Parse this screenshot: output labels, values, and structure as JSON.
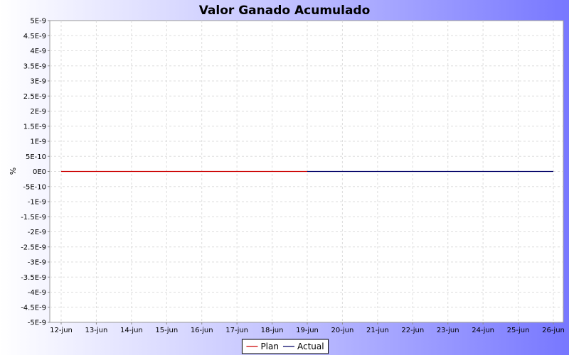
{
  "chart_data": {
    "type": "line",
    "title": "Valor Ganado Acumulado",
    "xlabel": "",
    "ylabel": "%",
    "ylim": [
      -5e-09,
      5e-09
    ],
    "yticks": [
      "5E-9",
      "4.5E-9",
      "4E-9",
      "3.5E-9",
      "3E-9",
      "2.5E-9",
      "2E-9",
      "1.5E-9",
      "1E-9",
      "5E-10",
      "0E0",
      "-5E-10",
      "-1E-9",
      "-1.5E-9",
      "-2E-9",
      "-2.5E-9",
      "-3E-9",
      "-3.5E-9",
      "-4E-9",
      "-4.5E-9",
      "-5E-9"
    ],
    "categories": [
      "12-jun",
      "13-jun",
      "14-jun",
      "15-jun",
      "16-jun",
      "17-jun",
      "18-jun",
      "19-jun",
      "20-jun",
      "21-jun",
      "22-jun",
      "23-jun",
      "24-jun",
      "25-jun",
      "26-jun"
    ],
    "grid": true,
    "legend_position": "bottom",
    "series": [
      {
        "name": "Plan",
        "color": "#cc0000",
        "values": [
          0,
          0,
          0,
          0,
          0,
          0,
          0,
          0,
          null,
          null,
          null,
          null,
          null,
          null,
          null
        ]
      },
      {
        "name": "Actual",
        "color": "#000066",
        "values": [
          null,
          null,
          null,
          null,
          null,
          null,
          null,
          0,
          0,
          0,
          0,
          0,
          0,
          0,
          0
        ]
      }
    ]
  }
}
